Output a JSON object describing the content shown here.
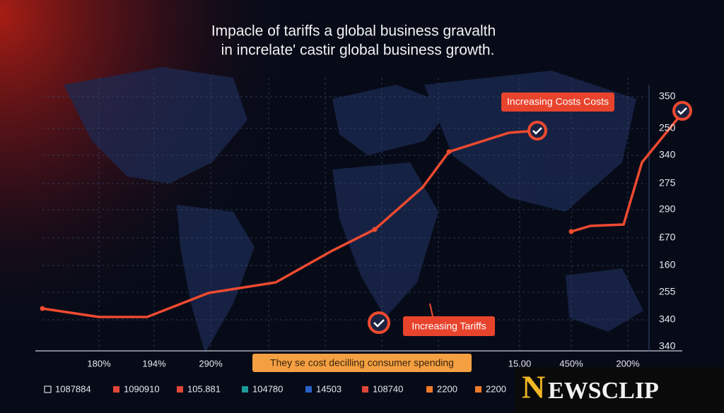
{
  "title": {
    "line1": "Impacle of tariffs a global business gravalth",
    "line2": "in increlate' castir global business growth."
  },
  "y_labels": [
    "350",
    "250",
    "340",
    "275",
    "290",
    "£70",
    "160",
    "255",
    "340",
    "340"
  ],
  "x_labels": [
    "180%",
    "194%",
    "290%",
    "15.00",
    "450%",
    "200%"
  ],
  "callouts": [
    "Increasing Costs Costs",
    "Increasing Tariffs"
  ],
  "banner": "They se cost decilling consumer spending",
  "legend": [
    {
      "label": "1087884",
      "color": "#ffffff"
    },
    {
      "label": "1090910",
      "color": "#e0463a"
    },
    {
      "label": "105.881",
      "color": "#e0463a"
    },
    {
      "label": "104780",
      "color": "#1d9a9a"
    },
    {
      "label": "14503",
      "color": "#2a62c9"
    },
    {
      "label": "108740",
      "color": "#e0463a"
    },
    {
      "label": "2200",
      "color": "#f07a2a"
    },
    {
      "label": "2200",
      "color": "#f07a2a"
    }
  ],
  "logo": {
    "first": "N",
    "rest": "EWSCLIP"
  }
}
